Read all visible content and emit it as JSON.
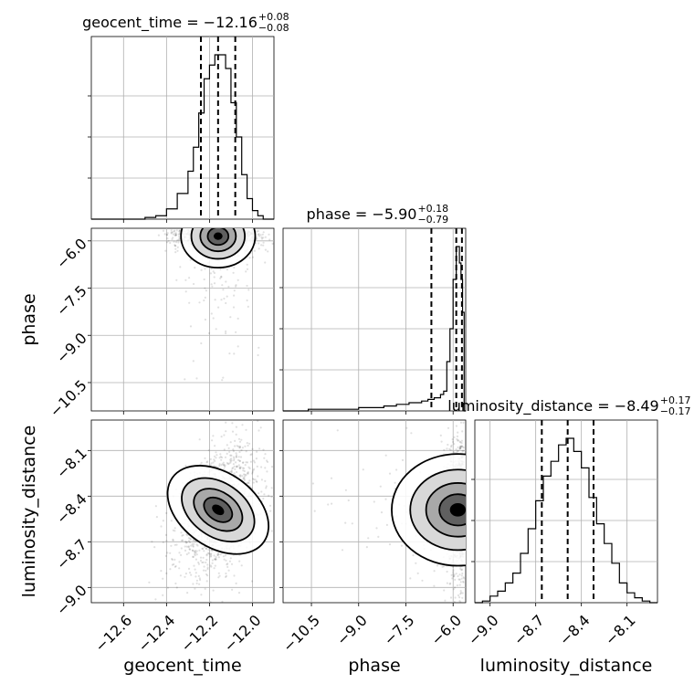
{
  "chart_data": {
    "type": "corner",
    "parameters": [
      {
        "name": "geocent_time",
        "label": "geocent_time",
        "range": [
          -12.75,
          -11.9
        ],
        "ticks": [
          -12.6,
          -12.4,
          -12.2,
          -12.0
        ],
        "tick_labels": [
          "−12.6",
          "−12.4",
          "−12.2",
          "−12.0"
        ]
      },
      {
        "name": "phase",
        "label": "phase",
        "range": [
          -11.4,
          -5.6
        ],
        "ticks": [
          -10.5,
          -9.0,
          -7.5,
          -6.0
        ],
        "tick_labels": [
          "−10.5",
          "−9.0",
          "−7.5",
          "−6.0"
        ]
      },
      {
        "name": "luminosity_distance",
        "label": "luminosity_distance",
        "range": [
          -9.1,
          -7.9
        ],
        "ticks": [
          -9.0,
          -8.7,
          -8.4,
          -8.1
        ],
        "tick_labels": [
          "−9.0",
          "−8.7",
          "−8.4",
          "−8.1"
        ]
      }
    ],
    "titles": [
      {
        "param": "geocent_time",
        "main": "geocent_time = −12.16",
        "upper": "+0.08",
        "lower": "−0.08"
      },
      {
        "param": "phase",
        "main": "phase = −5.90",
        "upper": "+0.18",
        "lower": "−0.79"
      },
      {
        "param": "luminosity_distance",
        "main": "luminosity_distance = −8.49",
        "upper": "+0.17",
        "lower": "−0.17"
      }
    ],
    "quantiles": {
      "geocent_time": [
        -12.24,
        -12.16,
        -12.08
      ],
      "phase": [
        -6.69,
        -5.9,
        -5.72
      ],
      "luminosity_distance": [
        -8.66,
        -8.49,
        -8.32
      ]
    },
    "histograms": {
      "geocent_time": {
        "edges": [
          -12.75,
          -12.5,
          -12.45,
          -12.4,
          -12.35,
          -12.3,
          -12.275,
          -12.25,
          -12.225,
          -12.2,
          -12.175,
          -12.15,
          -12.125,
          -12.1,
          -12.075,
          -12.05,
          -12.025,
          -12.0,
          -11.975,
          -11.95,
          -11.9
        ],
        "counts": [
          0,
          1,
          2,
          6,
          15,
          28,
          42,
          62,
          82,
          90,
          96,
          96,
          88,
          68,
          48,
          26,
          12,
          5,
          2,
          0
        ]
      },
      "phase": {
        "edges": [
          -11.4,
          -11.0,
          -10.6,
          -10.2,
          -9.8,
          -9.4,
          -9.0,
          -8.6,
          -8.2,
          -7.8,
          -7.4,
          -7.0,
          -6.8,
          -6.6,
          -6.4,
          -6.3,
          -6.2,
          -6.1,
          -6.0,
          -5.9,
          -5.8,
          -5.75,
          -5.7,
          -5.65,
          -5.6
        ],
        "counts": [
          0,
          0,
          1,
          1,
          1,
          1,
          2,
          2,
          3,
          4,
          5,
          6,
          7,
          8,
          10,
          12,
          30,
          50,
          80,
          100,
          90,
          80,
          60,
          0
        ]
      },
      "luminosity_distance": {
        "edges": [
          -9.1,
          -9.05,
          -9.0,
          -8.95,
          -8.9,
          -8.85,
          -8.8,
          -8.75,
          -8.7,
          -8.65,
          -8.6,
          -8.55,
          -8.5,
          -8.45,
          -8.4,
          -8.35,
          -8.3,
          -8.25,
          -8.2,
          -8.15,
          -8.1,
          -8.05,
          -8.0,
          -7.95,
          -7.9
        ],
        "counts": [
          0,
          1,
          4,
          7,
          12,
          18,
          30,
          45,
          62,
          77,
          86,
          96,
          100,
          92,
          82,
          64,
          48,
          36,
          24,
          12,
          6,
          3,
          1,
          0
        ]
      }
    },
    "grid": true
  }
}
